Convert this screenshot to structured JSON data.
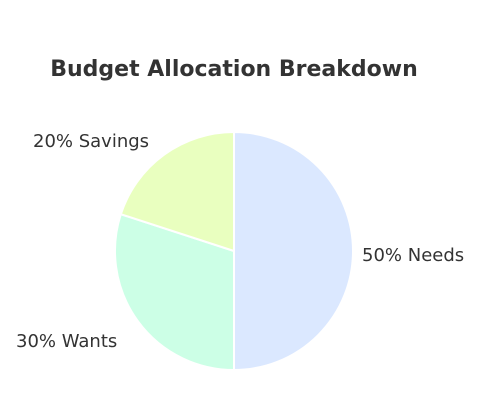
{
  "chart_data": {
    "type": "pie",
    "title": "Budget Allocation Breakdown",
    "slices": [
      {
        "label": "Needs",
        "value": 50,
        "display": "50% Needs",
        "color": "#dbe8ff"
      },
      {
        "label": "Wants",
        "value": 30,
        "display": "30% Wants",
        "color": "#ccffe6"
      },
      {
        "label": "Savings",
        "value": 20,
        "display": "20% Savings",
        "color": "#e9ffbf"
      }
    ],
    "start": "12 o'clock",
    "direction": "clockwise",
    "stroke_color": "#ffffff",
    "text_color": "#333333"
  }
}
